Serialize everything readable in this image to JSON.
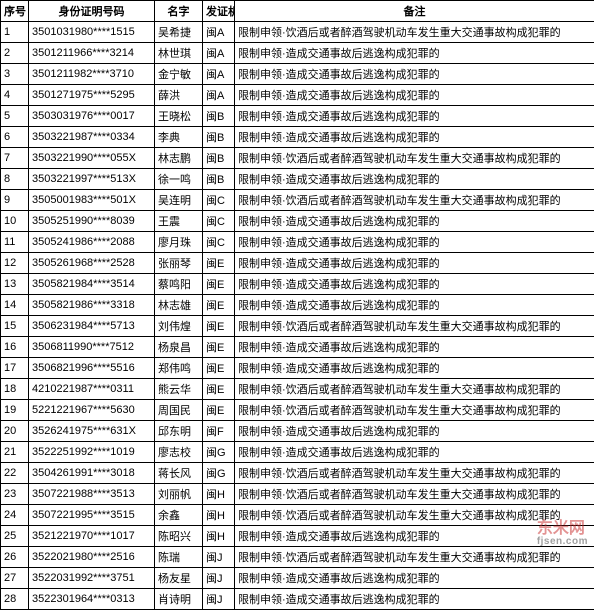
{
  "table": {
    "columns": [
      {
        "key": "seq",
        "header": "序号"
      },
      {
        "key": "idn",
        "header": "身份证明号码"
      },
      {
        "key": "name",
        "header": "名字"
      },
      {
        "key": "auth",
        "header": "发证机关"
      },
      {
        "key": "remark",
        "header": "备注"
      }
    ],
    "rows": [
      [
        "1",
        "3501031980****1515",
        "吴希捷",
        "闽A",
        "限制申领·饮酒后或者醉酒驾驶机动车发生重大交通事故构成犯罪的"
      ],
      [
        "2",
        "3501211966****3214",
        "林世琪",
        "闽A",
        "限制申领·造成交通事故后逃逸构成犯罪的"
      ],
      [
        "3",
        "3501211982****3710",
        "金宁敏",
        "闽A",
        "限制申领·造成交通事故后逃逸构成犯罪的"
      ],
      [
        "4",
        "3501271975****5295",
        "薛洪",
        "闽A",
        "限制申领·造成交通事故后逃逸构成犯罪的"
      ],
      [
        "5",
        "3503031976****0017",
        "王晓松",
        "闽B",
        "限制申领·造成交通事故后逃逸构成犯罪的"
      ],
      [
        "6",
        "3503221987****0334",
        "李典",
        "闽B",
        "限制申领·造成交通事故后逃逸构成犯罪的"
      ],
      [
        "7",
        "3503221990****055X",
        "林志鹏",
        "闽B",
        "限制申领·饮酒后或者醉酒驾驶机动车发生重大交通事故构成犯罪的"
      ],
      [
        "8",
        "3503221997****513X",
        "徐一鸣",
        "闽B",
        "限制申领·造成交通事故后逃逸构成犯罪的"
      ],
      [
        "9",
        "3505001983****501X",
        "吴连明",
        "闽C",
        "限制申领·饮酒后或者醉酒驾驶机动车发生重大交通事故构成犯罪的"
      ],
      [
        "10",
        "3505251990****8039",
        "王震",
        "闽C",
        "限制申领·造成交通事故后逃逸构成犯罪的"
      ],
      [
        "11",
        "3505241986****2088",
        "廖月珠",
        "闽C",
        "限制申领·造成交通事故后逃逸构成犯罪的"
      ],
      [
        "12",
        "3505261968****2528",
        "张丽琴",
        "闽E",
        "限制申领·造成交通事故后逃逸构成犯罪的"
      ],
      [
        "13",
        "3505821984****3514",
        "蔡鸣阳",
        "闽E",
        "限制申领·造成交通事故后逃逸构成犯罪的"
      ],
      [
        "14",
        "3505821986****3318",
        "林志雄",
        "闽E",
        "限制申领·造成交通事故后逃逸构成犯罪的"
      ],
      [
        "15",
        "3506231984****5713",
        "刘伟煌",
        "闽E",
        "限制申领·饮酒后或者醉酒驾驶机动车发生重大交通事故构成犯罪的"
      ],
      [
        "16",
        "3506811990****7512",
        "杨泉昌",
        "闽E",
        "限制申领·造成交通事故后逃逸构成犯罪的"
      ],
      [
        "17",
        "3506821996****5516",
        "郑伟鸣",
        "闽E",
        "限制申领·造成交通事故后逃逸构成犯罪的"
      ],
      [
        "18",
        "4210221987****0311",
        "熊云华",
        "闽E",
        "限制申领·饮酒后或者醉酒驾驶机动车发生重大交通事故构成犯罪的"
      ],
      [
        "19",
        "5221221967****5630",
        "周国民",
        "闽E",
        "限制申领·饮酒后或者醉酒驾驶机动车发生重大交通事故构成犯罪的"
      ],
      [
        "20",
        "3526241975****631X",
        "邱东明",
        "闽F",
        "限制申领·造成交通事故后逃逸构成犯罪的"
      ],
      [
        "21",
        "3522251992****1019",
        "廖志校",
        "闽G",
        "限制申领·造成交通事故后逃逸构成犯罪的"
      ],
      [
        "22",
        "3504261991****3018",
        "蒋长风",
        "闽G",
        "限制申领·饮酒后或者醉酒驾驶机动车发生重大交通事故构成犯罪的"
      ],
      [
        "23",
        "3507221988****3513",
        "刘丽帆",
        "闽H",
        "限制申领·饮酒后或者醉酒驾驶机动车发生重大交通事故构成犯罪的"
      ],
      [
        "24",
        "3507221995****3515",
        "余鑫",
        "闽H",
        "限制申领·饮酒后或者醉酒驾驶机动车发生重大交通事故构成犯罪的"
      ],
      [
        "25",
        "3521221970****1017",
        "陈昭兴",
        "闽H",
        "限制申领·造成交通事故后逃逸构成犯罪的"
      ],
      [
        "26",
        "3522021980****2516",
        "陈瑞",
        "闽J",
        "限制申领·饮酒后或者醉酒驾驶机动车发生重大交通事故构成犯罪的"
      ],
      [
        "27",
        "3522031992****3751",
        "杨友星",
        "闽J",
        "限制申领·造成交通事故后逃逸构成犯罪的"
      ],
      [
        "28",
        "3522301964****0313",
        "肖诗明",
        "闽J",
        "限制申领·造成交通事故后逃逸构成犯罪的"
      ]
    ]
  },
  "watermark": {
    "main": "东米网",
    "sub": "fjsen.com"
  }
}
